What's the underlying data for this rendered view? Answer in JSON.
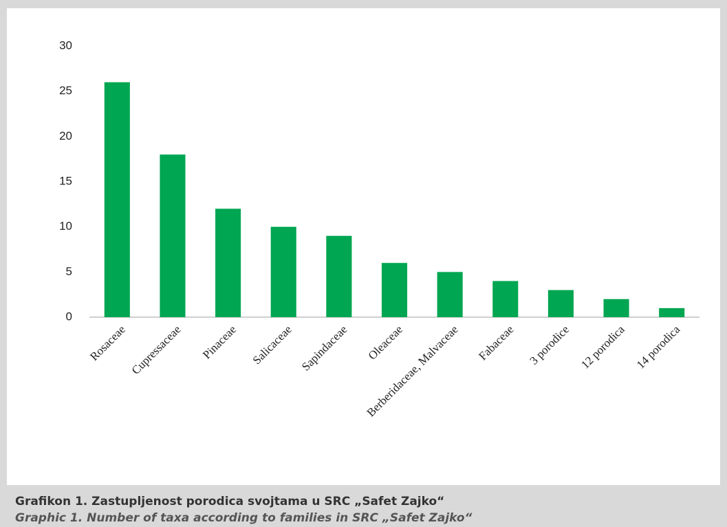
{
  "chart_data": {
    "type": "bar",
    "categories": [
      "Rosaceae",
      "Cupressaceae",
      "Pinaceae",
      "Salicaceae",
      "Sapindaceae",
      "Oleaceae",
      "Berberidaceae, Malvaceae",
      "Fabaceae",
      "3 porodice",
      "12 porodica",
      "14 porodica"
    ],
    "values": [
      26,
      18,
      12,
      10,
      9,
      6,
      5,
      4,
      3,
      2,
      1
    ],
    "color": "#00a651",
    "ylim": [
      0,
      30
    ],
    "yticks": [
      0,
      5,
      10,
      15,
      20,
      25,
      30
    ],
    "grid": false
  },
  "caption": {
    "title": "Grafikon 1. Zastupljenost porodica svojtama u SRC „Safet Zajko“",
    "subtitle": "Graphic 1. Number of taxa according to families in SRC „Safet Zajko“"
  }
}
